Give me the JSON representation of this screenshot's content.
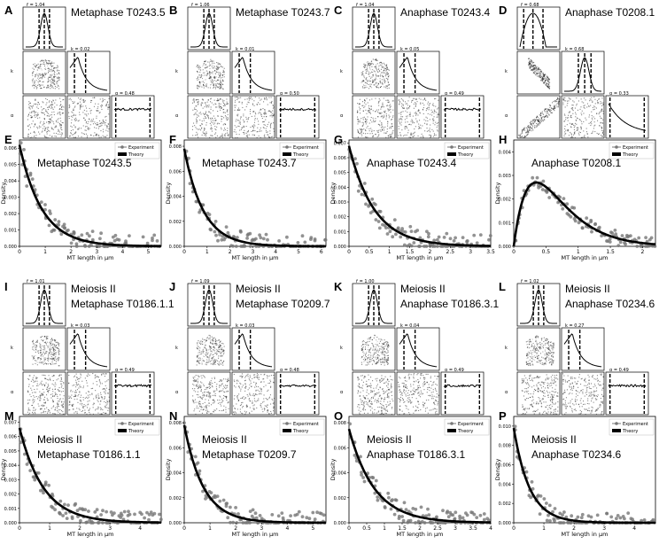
{
  "figure": {
    "letters": [
      "A",
      "B",
      "C",
      "D",
      "E",
      "F",
      "G",
      "H",
      "I",
      "J",
      "K",
      "L",
      "M",
      "N",
      "O",
      "P"
    ],
    "corner_axis_labels": {
      "r": "r̄",
      "k": "k",
      "a": "α"
    },
    "corner_alpha_ticks": [
      "0.2",
      "0.4",
      "0.6",
      "0.8"
    ],
    "hist_xlabel": "MT length in μm",
    "hist_ylabel": "Density",
    "legend": {
      "experiment": "Experiment",
      "theory": "Theory"
    }
  },
  "chart_data": [
    {
      "type": "corner",
      "letter": "A",
      "title_lines": [
        "Metaphase T0243.5"
      ],
      "r_label": "r̄ = 1.04",
      "k_label": "k = 0.02",
      "a_label": "α = 0.48",
      "r_ticks": [
        "0.95",
        "1.05",
        "1.15"
      ],
      "k_ticks": [
        "0.025",
        "0.050"
      ],
      "shape": "plateau"
    },
    {
      "type": "corner",
      "letter": "B",
      "title_lines": [
        "Metaphase T0243.7"
      ],
      "r_label": "r̄ = 1.06",
      "k_label": "k = 0.01",
      "a_label": "α = 0.50",
      "r_ticks": [
        "0.95",
        "1.05",
        "1.15"
      ],
      "k_ticks": [
        "0.02",
        "0.04"
      ],
      "shape": "plateau"
    },
    {
      "type": "corner",
      "letter": "C",
      "title_lines": [
        "Anaphase T0243.4"
      ],
      "r_label": "r̄ = 1.04",
      "k_label": "k = 0.05",
      "a_label": "α = 0.49",
      "r_ticks": [
        "0.95",
        "1.05",
        "1.15"
      ],
      "k_ticks": [
        "0.05",
        "0.10"
      ],
      "shape": "plateau"
    },
    {
      "type": "corner",
      "letter": "D",
      "title_lines": [
        "Anaphase T0208.1"
      ],
      "r_label": "r̄ = 0.68",
      "k_label": "k = 0.68",
      "a_label": "α = 0.33",
      "r_ticks": [
        "0.6",
        "0.8",
        "1.0"
      ],
      "k_ticks": [
        "0.4",
        "0.8"
      ],
      "shape": "decay"
    },
    {
      "type": "histogram",
      "letter": "E",
      "title_lines": [
        "Metaphase T0243.5"
      ],
      "xlim": [
        0,
        5.5
      ],
      "ylim": [
        0,
        0.0065
      ],
      "xticks": [
        0,
        1,
        2,
        3,
        4,
        5
      ],
      "yticks": [
        "0.000",
        "0.001",
        "0.002",
        "0.003",
        "0.004",
        "0.005",
        "0.006"
      ],
      "model": "exp",
      "peak": 0.0062,
      "rate": 1.15
    },
    {
      "type": "histogram",
      "letter": "F",
      "title_lines": [
        "Metaphase T0243.7"
      ],
      "xlim": [
        0,
        6.2
      ],
      "ylim": [
        0,
        0.0085
      ],
      "xticks": [
        0,
        1,
        2,
        3,
        4,
        5,
        6
      ],
      "yticks": [
        "0.000",
        "0.002",
        "0.004",
        "0.006",
        "0.008"
      ],
      "model": "exp",
      "peak": 0.0078,
      "rate": 1.2
    },
    {
      "type": "histogram",
      "letter": "G",
      "title_lines": [
        "Anaphase T0243.4"
      ],
      "xlim": [
        0,
        3.5
      ],
      "ylim": [
        0,
        0.0072
      ],
      "xticks": [
        0,
        0.5,
        1.0,
        1.5,
        2.0,
        2.5,
        3.0,
        3.5
      ],
      "yticks": [
        "0.000",
        "0.001",
        "0.002",
        "0.003",
        "0.004",
        "0.005",
        "0.006",
        "0.007"
      ],
      "model": "exp",
      "peak": 0.0068,
      "rate": 1.6
    },
    {
      "type": "histogram",
      "letter": "H",
      "title_lines": [
        "Anaphase T0208.1"
      ],
      "xlim": [
        0,
        2.2
      ],
      "ylim": [
        0,
        0.0045
      ],
      "xticks": [
        0,
        0.5,
        1.0,
        1.5,
        2.0
      ],
      "yticks": [
        "0.000",
        "0.001",
        "0.002",
        "0.003",
        "0.004"
      ],
      "model": "gamma",
      "peak": 0.0027,
      "mode": 0.35
    },
    {
      "type": "corner",
      "letter": "I",
      "title_lines": [
        "Meiosis II",
        "Metaphase T0186.1.1"
      ],
      "r_label": "r̄ = 1.01",
      "k_label": "k = 0.03",
      "a_label": "α = 0.49",
      "r_ticks": [
        "0.95",
        "1.05",
        "1.15"
      ],
      "k_ticks": [
        "0.02",
        "0.04"
      ],
      "shape": "plateau"
    },
    {
      "type": "corner",
      "letter": "J",
      "title_lines": [
        "Meiosis II",
        "Metaphase T0209.7"
      ],
      "r_label": "r̄ = 1.09",
      "k_label": "k = 0.03",
      "a_label": "α = 0.48",
      "r_ticks": [
        "1.00",
        "1.10",
        "1.20"
      ],
      "k_ticks": [
        "0.02",
        "0.04"
      ],
      "shape": "plateau"
    },
    {
      "type": "corner",
      "letter": "K",
      "title_lines": [
        "Meiosis II",
        "Anaphase T0186.3.1"
      ],
      "r_label": "r̄ = 1.00",
      "k_label": "k = 0.04",
      "a_label": "α = 0.49",
      "r_ticks": [
        "0.90",
        "1.00",
        "1.10"
      ],
      "k_ticks": [
        "0.04",
        "0.08"
      ],
      "shape": "plateau"
    },
    {
      "type": "corner",
      "letter": "L",
      "title_lines": [
        "Meiosis II",
        "Anaphase T0234.6"
      ],
      "r_label": "r̄ = 1.02",
      "k_label": "k = 0.27",
      "a_label": "α = 0.49",
      "r_ticks": [
        "0.90",
        "1.00",
        "1.10"
      ],
      "k_ticks": [
        "0.2",
        "0.4"
      ],
      "shape": "plateau"
    },
    {
      "type": "histogram",
      "letter": "M",
      "title_lines": [
        "Meiosis II",
        "Metaphase T0186.1.1"
      ],
      "xlim": [
        0,
        4.7
      ],
      "ylim": [
        0,
        0.0074
      ],
      "xticks": [
        0,
        1,
        2,
        3,
        4
      ],
      "yticks": [
        "0.000",
        "0.001",
        "0.002",
        "0.003",
        "0.004",
        "0.005",
        "0.006",
        "0.007"
      ],
      "model": "exp",
      "peak": 0.0066,
      "rate": 1.25
    },
    {
      "type": "histogram",
      "letter": "N",
      "title_lines": [
        "Meiosis II",
        "Metaphase T0209.7"
      ],
      "xlim": [
        0,
        5.5
      ],
      "ylim": [
        0,
        0.0085
      ],
      "xticks": [
        0,
        1,
        2,
        3,
        4,
        5
      ],
      "yticks": [
        "0.000",
        "0.002",
        "0.004",
        "0.006",
        "0.008"
      ],
      "model": "exp",
      "peak": 0.0078,
      "rate": 1.35
    },
    {
      "type": "histogram",
      "letter": "O",
      "title_lines": [
        "Meiosis II",
        "Anaphase T0186.3.1"
      ],
      "xlim": [
        0,
        4.0
      ],
      "ylim": [
        0,
        0.0085
      ],
      "xticks": [
        0,
        0.5,
        1.0,
        1.5,
        2.0,
        2.5,
        3.0,
        3.5,
        4.0
      ],
      "yticks": [
        "0.000",
        "0.002",
        "0.004",
        "0.006",
        "0.008"
      ],
      "model": "exp",
      "peak": 0.0075,
      "rate": 1.4
    },
    {
      "type": "histogram",
      "letter": "P",
      "title_lines": [
        "Meiosis II",
        "Anaphase T0234.6"
      ],
      "xlim": [
        0,
        4.7
      ],
      "ylim": [
        0,
        0.011
      ],
      "xticks": [
        0,
        1,
        2,
        3,
        4
      ],
      "yticks": [
        "0.000",
        "0.002",
        "0.004",
        "0.006",
        "0.008",
        "0.010"
      ],
      "model": "exp",
      "peak": 0.0098,
      "rate": 1.9
    }
  ]
}
